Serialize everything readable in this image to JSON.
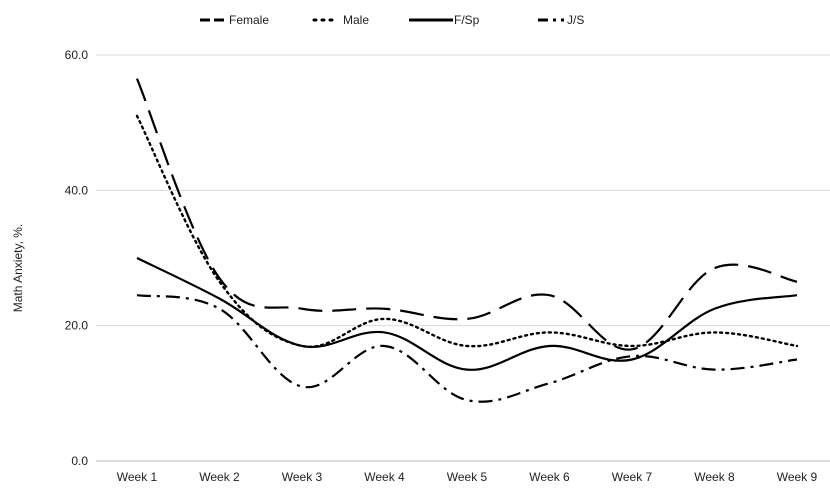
{
  "chart_data": {
    "type": "line",
    "title": "",
    "xlabel": "",
    "ylabel": "Math Anxiety, %.",
    "ylim": [
      0,
      60
    ],
    "yticks": [
      "0.0",
      "20.0",
      "40.0",
      "60.0"
    ],
    "grid": "horizontal",
    "legend_position": "top",
    "categories": [
      "Week 1",
      "Week 2",
      "Week 3",
      "Week 4",
      "Week 5",
      "Week 6",
      "Week 7",
      "Week 8",
      "Week 9"
    ],
    "series": [
      {
        "name": "Female",
        "style": "long-dash",
        "color": "#000000",
        "values": [
          56.5,
          27,
          22.5,
          22.5,
          21,
          24.5,
          16.5,
          28.5,
          26.5
        ]
      },
      {
        "name": "Male",
        "style": "dotted",
        "color": "#000000",
        "values": [
          51,
          26.5,
          17,
          21,
          17,
          19,
          17,
          19,
          17
        ]
      },
      {
        "name": "F/Sp",
        "style": "solid",
        "color": "#000000",
        "values": [
          30,
          24,
          17,
          19,
          13.5,
          17,
          15,
          22.5,
          24.5
        ]
      },
      {
        "name": "J/S",
        "style": "dash-dot",
        "color": "#000000",
        "values": [
          24.5,
          22.5,
          11,
          17,
          9,
          11.5,
          15.5,
          13.5,
          15
        ]
      }
    ]
  }
}
